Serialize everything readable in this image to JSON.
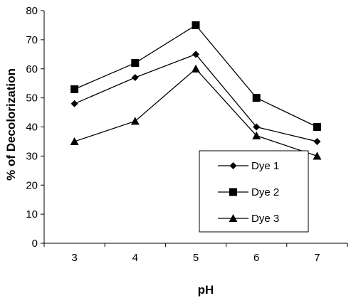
{
  "chart_data": {
    "type": "line",
    "title": "",
    "xlabel": "pH",
    "ylabel": "% of Decolorization",
    "x": [
      3,
      4,
      5,
      6,
      7
    ],
    "ylim": [
      0,
      80
    ],
    "yticks": [
      0,
      10,
      20,
      30,
      40,
      50,
      60,
      70,
      80
    ],
    "grid": false,
    "legend_position": "bottom-right",
    "series": [
      {
        "name": "Dye 1",
        "marker": "diamond",
        "values": [
          48,
          57,
          65,
          40,
          35
        ]
      },
      {
        "name": "Dye 2",
        "marker": "square",
        "values": [
          53,
          62,
          75,
          50,
          40
        ]
      },
      {
        "name": "Dye 3",
        "marker": "triangle",
        "values": [
          35,
          42,
          60,
          37,
          30
        ]
      }
    ],
    "colors": {
      "line": "#000000",
      "background": "#ffffff"
    }
  }
}
